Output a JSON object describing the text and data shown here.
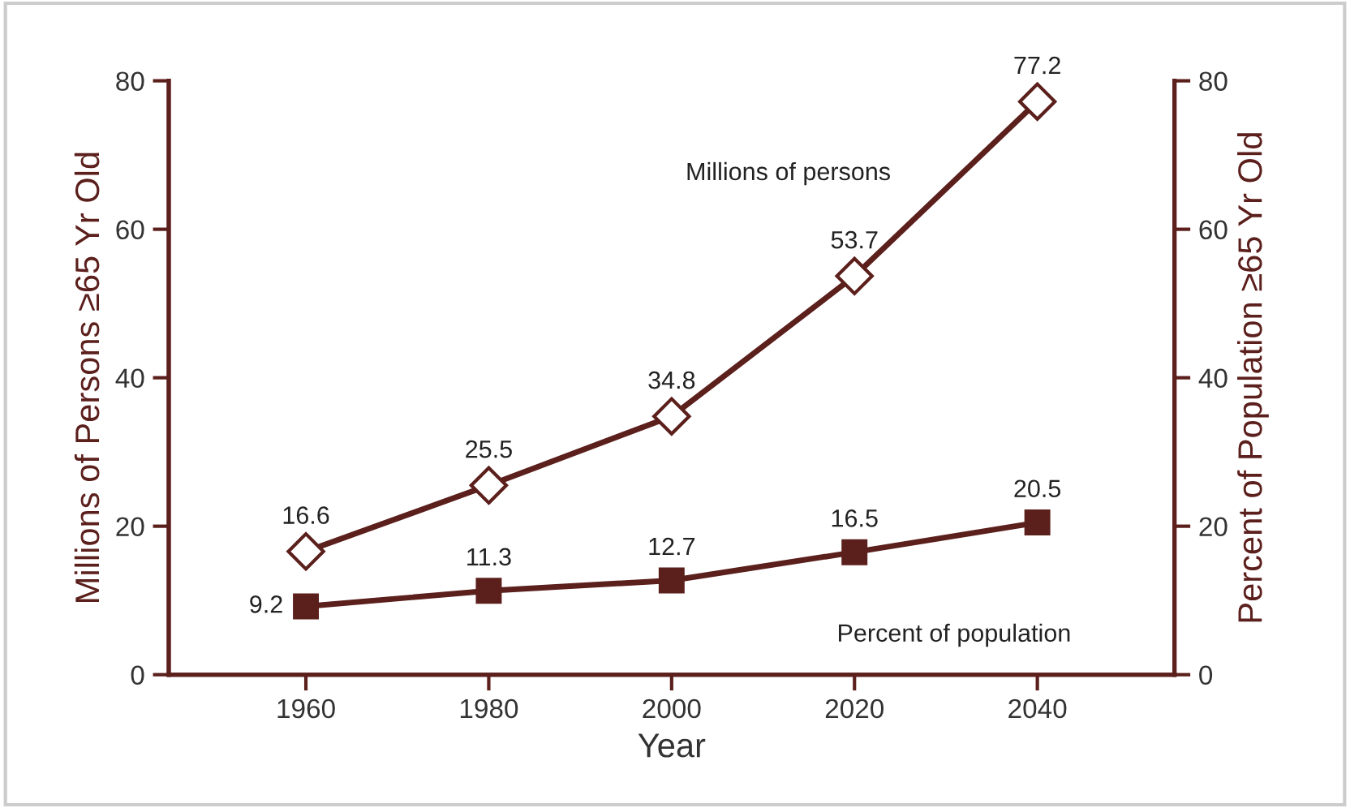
{
  "chart_data": {
    "type": "line",
    "xlabel": "Year",
    "ylabel": "Millions of Persons ≥65 Yr Old",
    "y2label": "Percent of Population ≥65 Yr Old",
    "x": [
      1960,
      1980,
      2000,
      2020,
      2040
    ],
    "xlim": [
      1945,
      2055
    ],
    "xticks": [
      1960,
      1980,
      2000,
      2020,
      2040
    ],
    "ylim": [
      0,
      80
    ],
    "yticks": [
      0,
      20,
      40,
      60,
      80
    ],
    "y2lim": [
      0,
      80
    ],
    "y2ticks": [
      0,
      20,
      40,
      60,
      80
    ],
    "series": [
      {
        "name": "Millions of persons",
        "color": "#5b1f1c",
        "marker": "diamond",
        "values": [
          16.6,
          25.5,
          34.8,
          53.7,
          77.2
        ]
      },
      {
        "name": "Percent of population",
        "color": "#5b1f1c",
        "marker": "square",
        "axis": "y2",
        "values": [
          9.2,
          11.3,
          12.7,
          16.5,
          20.5
        ]
      }
    ],
    "data_labels": true,
    "grid": false,
    "legend": false
  }
}
